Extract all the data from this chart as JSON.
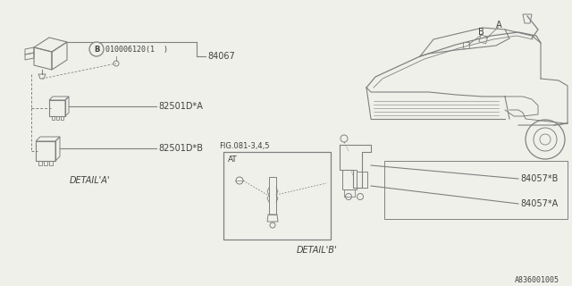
{
  "bg_color": "#f0f0eb",
  "line_color": "#808080",
  "text_color": "#404040",
  "part_number_84067": "84067",
  "part_number_82501A": "82501D*A",
  "part_number_82501B": "82501D*B",
  "part_number_84057A": "84057*A",
  "part_number_84057B": "84057*B",
  "label_B_circle": "B",
  "label_B_text": "010006120(1  )",
  "label_detail_A": "DETAIL*A*",
  "label_detail_B": "DETAIL*B*",
  "label_AT": "AT",
  "label_FIG": "FIG.081-3,4,5",
  "label_A": "A",
  "label_B_car": "B",
  "code": "A836001005",
  "white": "#ffffff"
}
